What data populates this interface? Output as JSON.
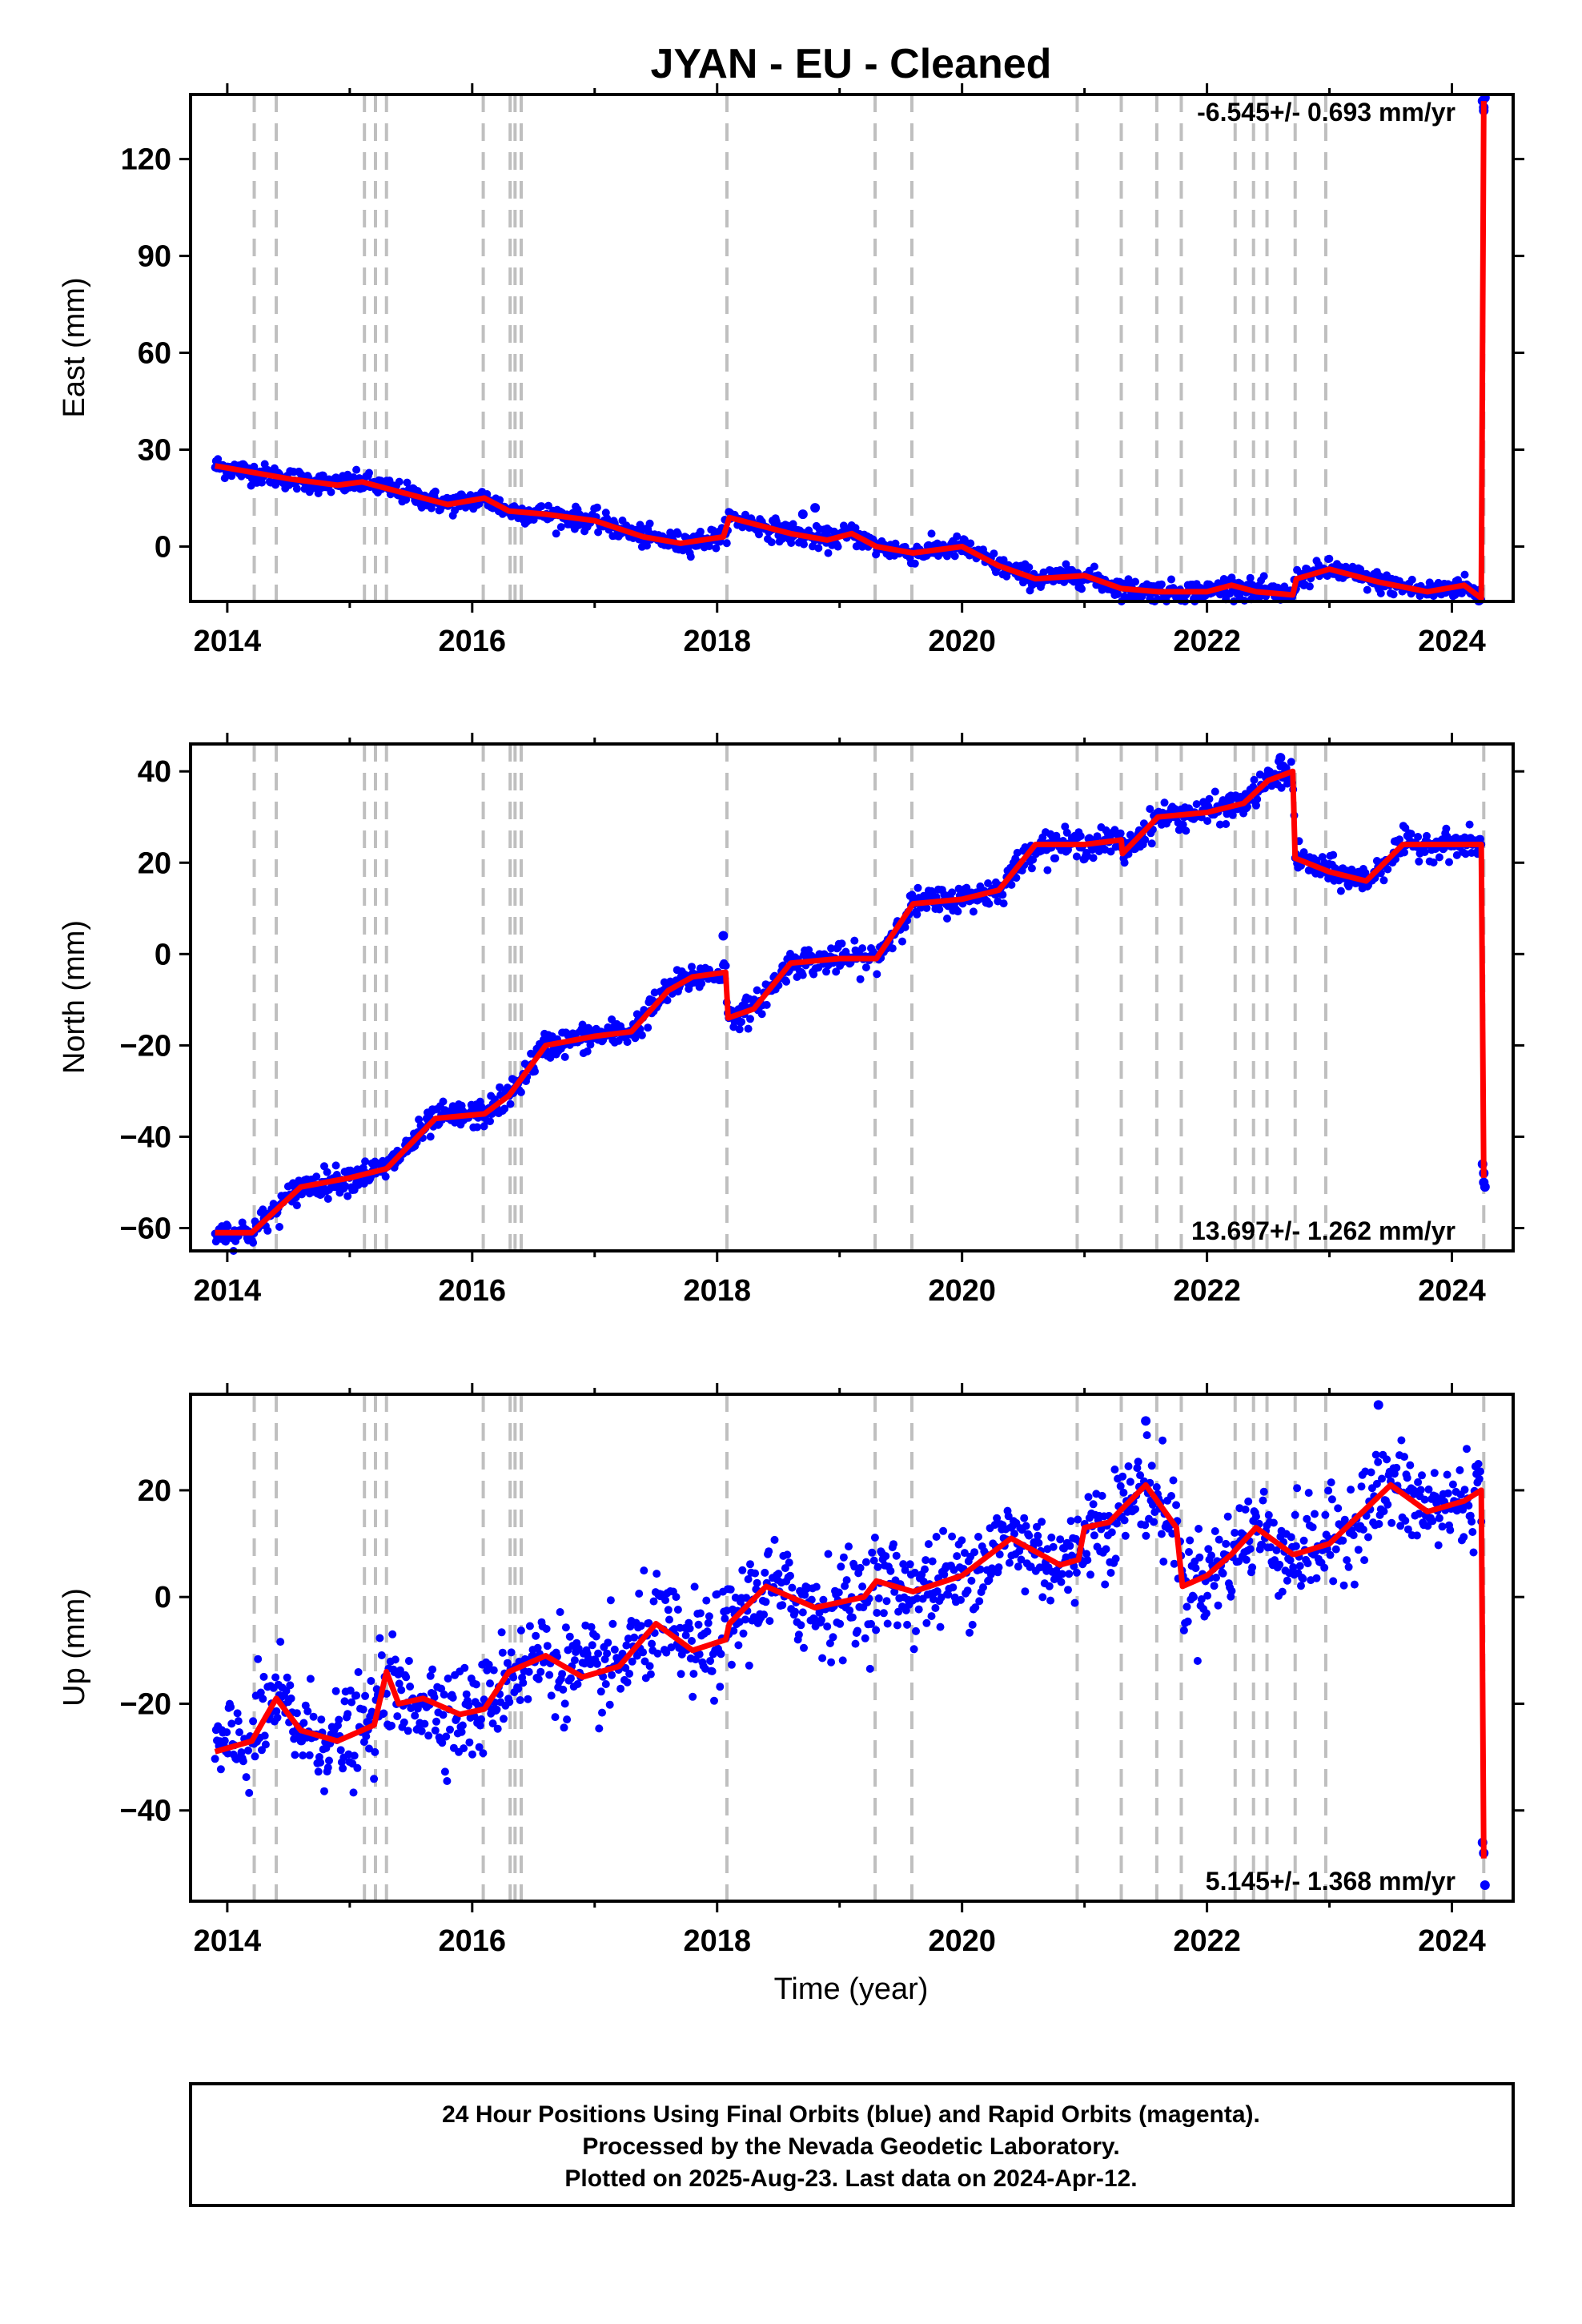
{
  "title": "JYAN  - EU - Cleaned",
  "colors": {
    "final_orbits": "#0000ff",
    "model_fit": "#ff0000",
    "event_lines": "#bfbfbf"
  },
  "event_markers": [
    2014.22,
    2014.4,
    2015.12,
    2015.21,
    2015.3,
    2016.09,
    2016.31,
    2016.35,
    2016.4,
    2018.08,
    2019.29,
    2019.59,
    2020.94,
    2021.3,
    2021.59,
    2021.79,
    2022.23,
    2022.38,
    2022.49,
    2022.72,
    2022.97,
    2024.26
  ],
  "chart_data": [
    {
      "type": "scatter",
      "panel": "east",
      "ylabel": "East (mm)",
      "xlabel": "",
      "xlim": [
        2013.7,
        2024.5
      ],
      "ylim": [
        -17,
        140
      ],
      "xticks": [
        2014,
        2016,
        2018,
        2020,
        2022,
        2024
      ],
      "yticks": [
        0,
        30,
        60,
        90,
        120
      ],
      "rate_label": "-6.545+/- 0.693 mm/yr",
      "rate_position": "top-right",
      "scatter_sd": 1.6,
      "trend": [
        [
          2013.9,
          25
        ],
        [
          2014.2,
          23
        ],
        [
          2014.5,
          21
        ],
        [
          2014.9,
          19
        ],
        [
          2015.1,
          20
        ],
        [
          2015.4,
          17
        ],
        [
          2015.8,
          13
        ],
        [
          2016.1,
          15
        ],
        [
          2016.3,
          11
        ],
        [
          2016.6,
          10
        ],
        [
          2017.0,
          8
        ],
        [
          2017.4,
          3
        ],
        [
          2017.7,
          1
        ],
        [
          2018.05,
          3
        ],
        [
          2018.1,
          9
        ],
        [
          2018.6,
          4
        ],
        [
          2018.9,
          2
        ],
        [
          2019.1,
          4
        ],
        [
          2019.3,
          0
        ],
        [
          2019.6,
          -2
        ],
        [
          2020.0,
          0
        ],
        [
          2020.3,
          -6
        ],
        [
          2020.6,
          -10
        ],
        [
          2021.0,
          -9
        ],
        [
          2021.3,
          -13
        ],
        [
          2021.6,
          -14
        ],
        [
          2022.0,
          -14
        ],
        [
          2022.2,
          -12
        ],
        [
          2022.4,
          -14
        ],
        [
          2022.7,
          -15
        ],
        [
          2022.73,
          -10
        ],
        [
          2023.0,
          -7
        ],
        [
          2023.4,
          -11
        ],
        [
          2023.8,
          -14
        ],
        [
          2024.1,
          -12
        ],
        [
          2024.24,
          -16
        ],
        [
          2024.26,
          138
        ]
      ],
      "outliers": [
        [
          2024.25,
          138
        ],
        [
          2024.26,
          136
        ],
        [
          2024.27,
          139
        ],
        [
          2024.26,
          135
        ],
        [
          2018.8,
          12
        ],
        [
          2018.7,
          10
        ]
      ]
    },
    {
      "type": "scatter",
      "panel": "north",
      "ylabel": "North (mm)",
      "xlabel": "",
      "xlim": [
        2013.7,
        2024.5
      ],
      "ylim": [
        -65,
        46
      ],
      "xticks": [
        2014,
        2016,
        2018,
        2020,
        2022,
        2024
      ],
      "yticks": [
        -60,
        -40,
        -20,
        0,
        20,
        40
      ],
      "rate_label": "13.697+/- 1.262 mm/yr",
      "rate_position": "bottom-right",
      "scatter_sd": 1.5,
      "trend": [
        [
          2013.9,
          -61
        ],
        [
          2014.2,
          -61
        ],
        [
          2014.6,
          -51
        ],
        [
          2015.0,
          -49
        ],
        [
          2015.3,
          -47
        ],
        [
          2015.7,
          -36
        ],
        [
          2016.1,
          -35
        ],
        [
          2016.3,
          -31
        ],
        [
          2016.6,
          -20
        ],
        [
          2017.0,
          -18
        ],
        [
          2017.3,
          -17
        ],
        [
          2017.6,
          -8
        ],
        [
          2017.8,
          -5
        ],
        [
          2018.07,
          -4
        ],
        [
          2018.09,
          -14
        ],
        [
          2018.3,
          -12
        ],
        [
          2018.6,
          -2
        ],
        [
          2019.0,
          -1
        ],
        [
          2019.3,
          -1
        ],
        [
          2019.6,
          11
        ],
        [
          2020.0,
          12
        ],
        [
          2020.3,
          14
        ],
        [
          2020.6,
          24
        ],
        [
          2021.0,
          24
        ],
        [
          2021.3,
          25
        ],
        [
          2021.31,
          22
        ],
        [
          2021.6,
          30
        ],
        [
          2022.0,
          31
        ],
        [
          2022.3,
          33
        ],
        [
          2022.5,
          38
        ],
        [
          2022.7,
          40
        ],
        [
          2022.72,
          21
        ],
        [
          2023.0,
          18
        ],
        [
          2023.3,
          16
        ],
        [
          2023.6,
          24
        ],
        [
          2024.0,
          24
        ],
        [
          2024.24,
          24
        ],
        [
          2024.26,
          -49
        ]
      ],
      "outliers": [
        [
          2024.25,
          -46
        ],
        [
          2024.26,
          -48
        ],
        [
          2024.27,
          -51
        ],
        [
          2024.26,
          -50
        ],
        [
          2018.05,
          4
        ],
        [
          2022.6,
          43
        ]
      ]
    },
    {
      "type": "scatter",
      "panel": "up",
      "ylabel": "Up (mm)",
      "xlabel": "Time (year)",
      "xlim": [
        2013.7,
        2024.5
      ],
      "ylim": [
        -57,
        38
      ],
      "xticks": [
        2014,
        2016,
        2018,
        2020,
        2022,
        2024
      ],
      "yticks": [
        -40,
        -20,
        0,
        20
      ],
      "rate_label": "5.145+/- 1.368 mm/yr",
      "rate_position": "bottom-right",
      "scatter_sd": 4.5,
      "trend": [
        [
          2013.9,
          -29
        ],
        [
          2014.2,
          -27
        ],
        [
          2014.4,
          -19
        ],
        [
          2014.6,
          -25
        ],
        [
          2014.9,
          -27
        ],
        [
          2015.1,
          -25
        ],
        [
          2015.2,
          -24
        ],
        [
          2015.3,
          -14
        ],
        [
          2015.4,
          -20
        ],
        [
          2015.6,
          -19
        ],
        [
          2015.9,
          -22
        ],
        [
          2016.1,
          -21
        ],
        [
          2016.3,
          -14
        ],
        [
          2016.6,
          -11
        ],
        [
          2016.9,
          -15
        ],
        [
          2017.2,
          -13
        ],
        [
          2017.5,
          -5
        ],
        [
          2017.8,
          -10
        ],
        [
          2018.07,
          -8
        ],
        [
          2018.1,
          -5
        ],
        [
          2018.4,
          2
        ],
        [
          2018.8,
          -2
        ],
        [
          2019.2,
          0
        ],
        [
          2019.3,
          3
        ],
        [
          2019.6,
          1
        ],
        [
          2020.0,
          4
        ],
        [
          2020.4,
          11
        ],
        [
          2020.8,
          6
        ],
        [
          2020.95,
          7
        ],
        [
          2021.0,
          13
        ],
        [
          2021.2,
          14
        ],
        [
          2021.5,
          21
        ],
        [
          2021.75,
          13
        ],
        [
          2021.8,
          2
        ],
        [
          2022.0,
          4
        ],
        [
          2022.2,
          8
        ],
        [
          2022.4,
          13
        ],
        [
          2022.7,
          8
        ],
        [
          2022.72,
          8
        ],
        [
          2023.0,
          10
        ],
        [
          2023.5,
          21
        ],
        [
          2023.8,
          16
        ],
        [
          2024.1,
          18
        ],
        [
          2024.24,
          20
        ],
        [
          2024.26,
          -49
        ]
      ],
      "outliers": [
        [
          2024.25,
          -46
        ],
        [
          2024.26,
          -48
        ],
        [
          2024.27,
          -54
        ],
        [
          2023.4,
          36
        ],
        [
          2021.5,
          33
        ]
      ]
    }
  ],
  "footer": {
    "line1": "24 Hour Positions Using Final Orbits (blue) and Rapid Orbits (magenta).",
    "line2": "Processed by the Nevada Geodetic Laboratory.",
    "line3": "Plotted on 2025-Aug-23. Last data on 2024-Apr-12."
  }
}
